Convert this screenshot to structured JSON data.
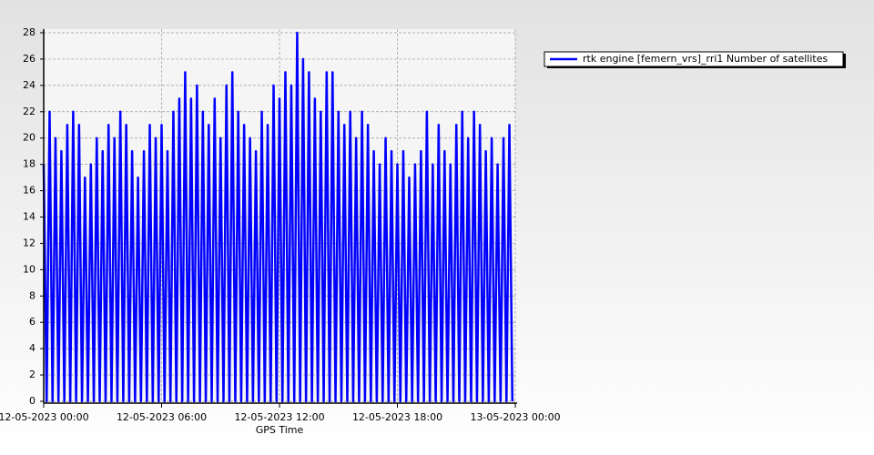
{
  "chart_data": {
    "type": "line",
    "x_label": "GPS Time",
    "x": [
      0,
      0.15,
      0.3,
      0.45,
      0.6,
      0.75,
      0.9,
      1.05,
      1.2,
      1.35,
      1.5,
      1.65,
      1.8,
      1.95,
      2.1,
      2.25,
      2.4,
      2.55,
      2.7,
      2.85,
      3,
      3.15,
      3.3,
      3.45,
      3.6,
      3.75,
      3.9,
      4.05,
      4.2,
      4.35,
      4.5,
      4.65,
      4.8,
      4.95,
      5.1,
      5.25,
      5.4,
      5.55,
      5.7,
      5.85,
      6,
      6.15,
      6.3,
      6.45,
      6.6,
      6.75,
      6.9,
      7.05,
      7.2,
      7.35,
      7.5,
      7.65,
      7.8,
      7.95,
      8.1,
      8.25,
      8.4,
      8.55,
      8.7,
      8.85,
      9,
      9.15,
      9.3,
      9.45,
      9.6,
      9.75,
      9.9,
      10.05,
      10.2,
      10.35,
      10.5,
      10.65,
      10.8,
      10.95,
      11.1,
      11.25,
      11.4,
      11.55,
      11.7,
      11.85,
      12,
      12.15,
      12.3,
      12.45,
      12.6,
      12.75,
      12.9,
      13.05,
      13.2,
      13.35,
      13.5,
      13.65,
      13.8,
      13.95,
      14.1,
      14.25,
      14.4,
      14.55,
      14.7,
      14.85,
      15,
      15.15,
      15.3,
      15.45,
      15.6,
      15.75,
      15.9,
      16.05,
      16.2,
      16.35,
      16.5,
      16.65,
      16.8,
      16.95,
      17.1,
      17.25,
      17.4,
      17.55,
      17.7,
      17.85,
      18,
      18.15,
      18.3,
      18.45,
      18.6,
      18.75,
      18.9,
      19.05,
      19.2,
      19.35,
      19.5,
      19.65,
      19.8,
      19.95,
      20.1,
      20.25,
      20.4,
      20.55,
      20.7,
      20.85,
      21,
      21.15,
      21.3,
      21.45,
      21.6,
      21.75,
      21.9,
      22.05,
      22.2,
      22.35,
      22.5,
      22.65,
      22.8,
      22.95,
      23.1,
      23.25,
      23.4,
      23.55,
      23.7,
      23.85
    ],
    "series": [
      {
        "name": "rtk engine [femern_vrs]_rri1 Number of satellites",
        "color": "#0000ff",
        "values": [
          18,
          0,
          22,
          0,
          20,
          0,
          19,
          0,
          21,
          0,
          22,
          0,
          21,
          0,
          17,
          0,
          18,
          0,
          20,
          0,
          19,
          0,
          21,
          0,
          20,
          0,
          22,
          0,
          21,
          0,
          19,
          0,
          17,
          0,
          19,
          0,
          21,
          0,
          20,
          0,
          21,
          0,
          19,
          0,
          22,
          0,
          23,
          0,
          25,
          0,
          23,
          0,
          24,
          0,
          22,
          0,
          21,
          0,
          23,
          0,
          20,
          0,
          24,
          0,
          25,
          0,
          22,
          0,
          21,
          0,
          20,
          0,
          19,
          0,
          22,
          0,
          21,
          0,
          24,
          0,
          23,
          0,
          25,
          0,
          24,
          0,
          28,
          0,
          26,
          0,
          25,
          0,
          23,
          0,
          22,
          0,
          25,
          0,
          25,
          0,
          22,
          0,
          21,
          0,
          22,
          0,
          20,
          0,
          22,
          0,
          21,
          0,
          19,
          0,
          18,
          0,
          20,
          0,
          19,
          0,
          18,
          0,
          19,
          0,
          17,
          0,
          18,
          0,
          19,
          0,
          22,
          0,
          18,
          0,
          21,
          0,
          19,
          0,
          18,
          0,
          21,
          0,
          22,
          0,
          20,
          0,
          22,
          0,
          21,
          0,
          19,
          0,
          20,
          0,
          18,
          0,
          20,
          0,
          21,
          0
        ]
      }
    ],
    "xlim": [
      0,
      24
    ],
    "xticks": [
      {
        "value": 0,
        "label": "12-05-2023 00:00"
      },
      {
        "value": 6,
        "label": "12-05-2023 06:00"
      },
      {
        "value": 12,
        "label": "12-05-2023 12:00"
      },
      {
        "value": 18,
        "label": "12-05-2023 18:00"
      },
      {
        "value": 24,
        "label": "13-05-2023 00:00"
      }
    ],
    "ylim": [
      0,
      28
    ],
    "yticks": [
      0,
      2,
      4,
      6,
      8,
      10,
      12,
      14,
      16,
      18,
      20,
      22,
      24,
      26,
      28
    ],
    "grid": true,
    "legend": "top-right"
  }
}
